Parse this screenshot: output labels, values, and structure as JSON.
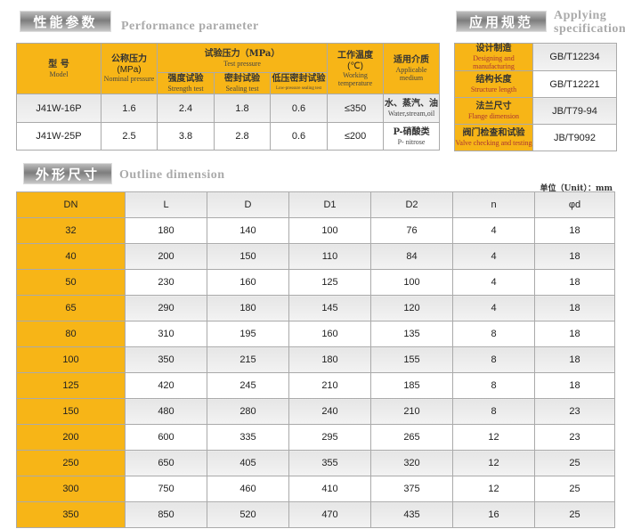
{
  "performance": {
    "badge": "性能参数",
    "title": "Performance parameter",
    "headers": {
      "model_zh": "型 号",
      "model_en": "Model",
      "nominal_zh": "公称压力",
      "nominal_unit": "(MPa)",
      "nominal_en": "Nominal pressure",
      "test_zh": "试验压力（MPa）",
      "test_en": "Test pressure",
      "strength_zh": "强度试验",
      "strength_en": "Strength test",
      "sealing_zh": "密封试验",
      "sealing_en": "Sealing test",
      "low_zh": "低压密封试验",
      "low_en": "Low-pressure sealing test",
      "temp_zh": "工作温度",
      "temp_unit": "(℃)",
      "temp_en": "Working temperature",
      "medium_zh": "适用介质",
      "medium_en": "Applicable medium"
    },
    "rows": [
      {
        "model": "J41W-16P",
        "nominal": "1.6",
        "strength": "2.4",
        "sealing": "1.8",
        "low": "0.6",
        "temp": "≤350",
        "medium_zh": "水、蒸汽、油",
        "medium_en": "Water,stream,oil"
      },
      {
        "model": "J41W-25P",
        "nominal": "2.5",
        "strength": "3.8",
        "sealing": "2.8",
        "low": "0.6",
        "temp": "≤200",
        "medium_zh": "P-硝酸类",
        "medium_en": "P- nitrose"
      }
    ]
  },
  "spec": {
    "badge": "应用规范",
    "title1": "Applying",
    "title2": "specification",
    "rows": [
      {
        "zh": "设计制造",
        "en": "Designing and manufacturing",
        "value": "GB/T12234"
      },
      {
        "zh": "结构长度",
        "en": "Structure length",
        "value": "GB/T12221"
      },
      {
        "zh": "法兰尺寸",
        "en": "Flange dimension",
        "value": "JB/T79-94"
      },
      {
        "zh": "阀门检查和试验",
        "en": "Valve checking and testing",
        "value": "JB/T9092"
      }
    ]
  },
  "outline": {
    "badge": "外形尺寸",
    "title": "Outline dimension",
    "unit": "单位（Unit）：mm",
    "headers": [
      "DN",
      "L",
      "D",
      "D1",
      "D2",
      "n",
      "φd"
    ],
    "rows": [
      [
        "32",
        "180",
        "140",
        "100",
        "76",
        "4",
        "18"
      ],
      [
        "40",
        "200",
        "150",
        "110",
        "84",
        "4",
        "18"
      ],
      [
        "50",
        "230",
        "160",
        "125",
        "100",
        "4",
        "18"
      ],
      [
        "65",
        "290",
        "180",
        "145",
        "120",
        "4",
        "18"
      ],
      [
        "80",
        "310",
        "195",
        "160",
        "135",
        "8",
        "18"
      ],
      [
        "100",
        "350",
        "215",
        "180",
        "155",
        "8",
        "18"
      ],
      [
        "125",
        "420",
        "245",
        "210",
        "185",
        "8",
        "18"
      ],
      [
        "150",
        "480",
        "280",
        "240",
        "210",
        "8",
        "23"
      ],
      [
        "200",
        "600",
        "335",
        "295",
        "265",
        "12",
        "23"
      ],
      [
        "250",
        "650",
        "405",
        "355",
        "320",
        "12",
        "25"
      ],
      [
        "300",
        "750",
        "460",
        "410",
        "375",
        "12",
        "25"
      ],
      [
        "350",
        "850",
        "520",
        "470",
        "435",
        "16",
        "25"
      ]
    ]
  }
}
